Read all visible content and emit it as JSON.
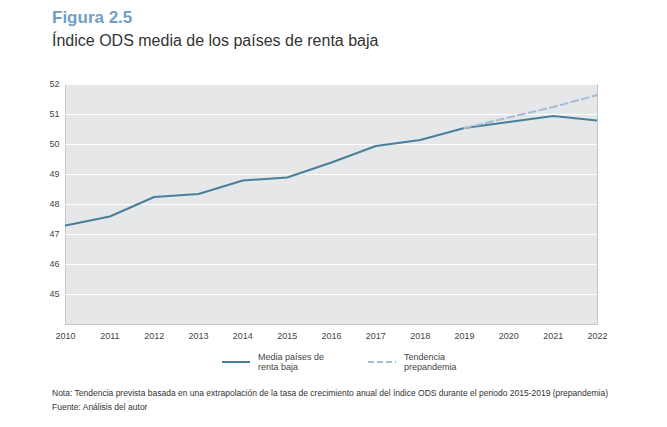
{
  "chart_data": {
    "type": "line",
    "title": "Figura 2.5",
    "subtitle": "Índice ODS media de los países de renta baja",
    "note": "Nota: Tendencia prevista basada en una extrapolación de la tasa de crecimiento anual del índice ODS durante el periodo 2015-2019 (prepandemia)",
    "source": "Fuente: Análisis del autor",
    "x": [
      2010,
      2011,
      2012,
      2013,
      2014,
      2015,
      2016,
      2017,
      2018,
      2019,
      2020,
      2021,
      2022
    ],
    "series": [
      {
        "name": "Media países de renta baja",
        "color": "#4a7f9b",
        "line_style": "solid",
        "values": [
          47.3,
          47.6,
          48.25,
          48.35,
          48.8,
          48.9,
          49.4,
          49.95,
          50.15,
          50.55,
          50.75,
          50.95,
          50.8
        ]
      },
      {
        "name": "Tendencia prepandemia",
        "color": "#a3bdd6",
        "line_style": "dashed",
        "values": [
          null,
          null,
          null,
          null,
          null,
          null,
          null,
          null,
          null,
          50.55,
          50.9,
          51.25,
          51.65
        ]
      }
    ],
    "xlim": [
      2010,
      2022
    ],
    "xticks": [
      2010,
      2011,
      2012,
      2013,
      2014,
      2015,
      2016,
      2017,
      2018,
      2019,
      2020,
      2021,
      2022
    ],
    "ylim": [
      44,
      52
    ],
    "yticks": [
      45,
      46,
      47,
      48,
      49,
      50,
      51,
      52
    ],
    "grid": true,
    "legend": "bottom"
  }
}
